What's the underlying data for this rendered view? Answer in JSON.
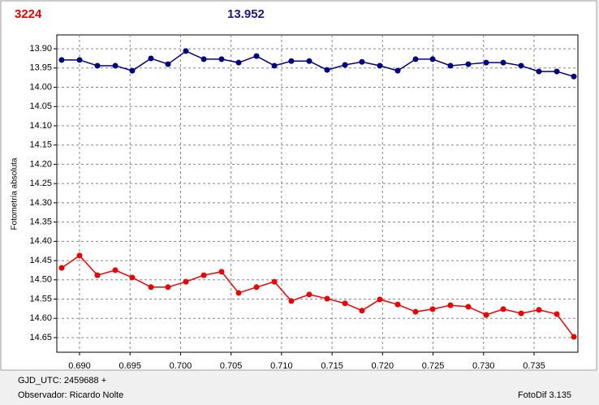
{
  "header": {
    "left": "3224",
    "right": "13.952"
  },
  "footer": {
    "date": "GJD_UTC: 2459688 +",
    "observer": "Observador: Ricardo Nolte",
    "software": "FotoDif 3.135"
  },
  "chart_data": {
    "type": "line",
    "ylabel": "Fotometría absoluta",
    "x": [
      0.68823,
      0.69,
      0.69177,
      0.69354,
      0.69522,
      0.69707,
      0.69876,
      0.70053,
      0.7023,
      0.70406,
      0.70575,
      0.70752,
      0.70929,
      0.71097,
      0.71274,
      0.71451,
      0.71628,
      0.71796,
      0.71973,
      0.7215,
      0.72327,
      0.72496,
      0.72672,
      0.72849,
      0.73026,
      0.73195,
      0.73372,
      0.73548,
      0.73725,
      0.73894
    ],
    "series": [
      {
        "color": "#000080",
        "values": [
          13.929,
          13.929,
          13.944,
          13.944,
          13.957,
          13.925,
          13.94,
          13.906,
          13.927,
          13.927,
          13.936,
          13.919,
          13.944,
          13.932,
          13.932,
          13.955,
          13.942,
          13.934,
          13.944,
          13.957,
          13.927,
          13.927,
          13.944,
          13.94,
          13.936,
          13.936,
          13.944,
          13.959,
          13.959,
          13.972
        ]
      },
      {
        "color": "#ee0000",
        "values": [
          14.469,
          14.437,
          14.488,
          14.475,
          14.494,
          14.519,
          14.519,
          14.505,
          14.488,
          14.479,
          14.534,
          14.519,
          14.505,
          14.555,
          14.538,
          14.549,
          14.561,
          14.58,
          14.551,
          14.564,
          14.583,
          14.576,
          14.566,
          14.57,
          14.591,
          14.576,
          14.587,
          14.578,
          14.589,
          14.648
        ]
      }
    ],
    "xlim": [
      0.68775,
      0.73934
    ],
    "ylim": [
      14.688,
      13.864
    ],
    "xticks": [
      {
        "value": 0.69,
        "label": "0.690"
      },
      0.695,
      {
        "value": 0.7,
        "label": "0.700"
      },
      0.705,
      {
        "value": 0.71,
        "label": "0.710"
      },
      0.715,
      {
        "value": 0.72,
        "label": "0.720"
      },
      0.725,
      {
        "value": 0.73,
        "label": "0.730"
      },
      0.735
    ],
    "yticks": [
      {
        "value": 13.9,
        "label": "13.90"
      },
      13.95,
      {
        "value": 14.0,
        "label": "14.00"
      },
      14.05,
      {
        "value": 14.1,
        "label": "14.10"
      },
      14.15,
      {
        "value": 14.2,
        "label": "14.20"
      },
      14.25,
      {
        "value": 14.3,
        "label": "14.30"
      },
      14.35,
      {
        "value": 14.4,
        "label": "14.40"
      },
      14.45,
      {
        "value": 14.5,
        "label": "14.50"
      },
      14.55,
      {
        "value": 14.6,
        "label": "14.60"
      },
      14.65
    ],
    "grid": true
  }
}
